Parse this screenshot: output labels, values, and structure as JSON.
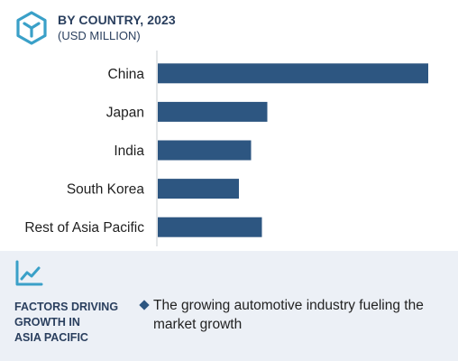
{
  "header": {
    "logo_icon": "cube-logo-icon",
    "title": "BY COUNTRY, 2023",
    "subtitle": "(USD MILLION)"
  },
  "chart_data": {
    "type": "bar",
    "orientation": "horizontal",
    "categories": [
      "China",
      "Japan",
      "India",
      "South Korea",
      "Rest of Asia Pacific"
    ],
    "values": [
      100,
      40.5,
      34.5,
      30,
      38.5
    ],
    "xlim": [
      0,
      100
    ],
    "grid": false,
    "legend": "none",
    "bar_color": "#2d5681"
  },
  "footer": {
    "icon": "trend-chart-icon",
    "title": "FACTORS DRIVING\nGROWTH IN\nASIA PACIFIC",
    "items": [
      "The growing automotive industry fueling the market growth"
    ],
    "accent_color": "#2d5681",
    "background_color": "#ecf0f6"
  }
}
